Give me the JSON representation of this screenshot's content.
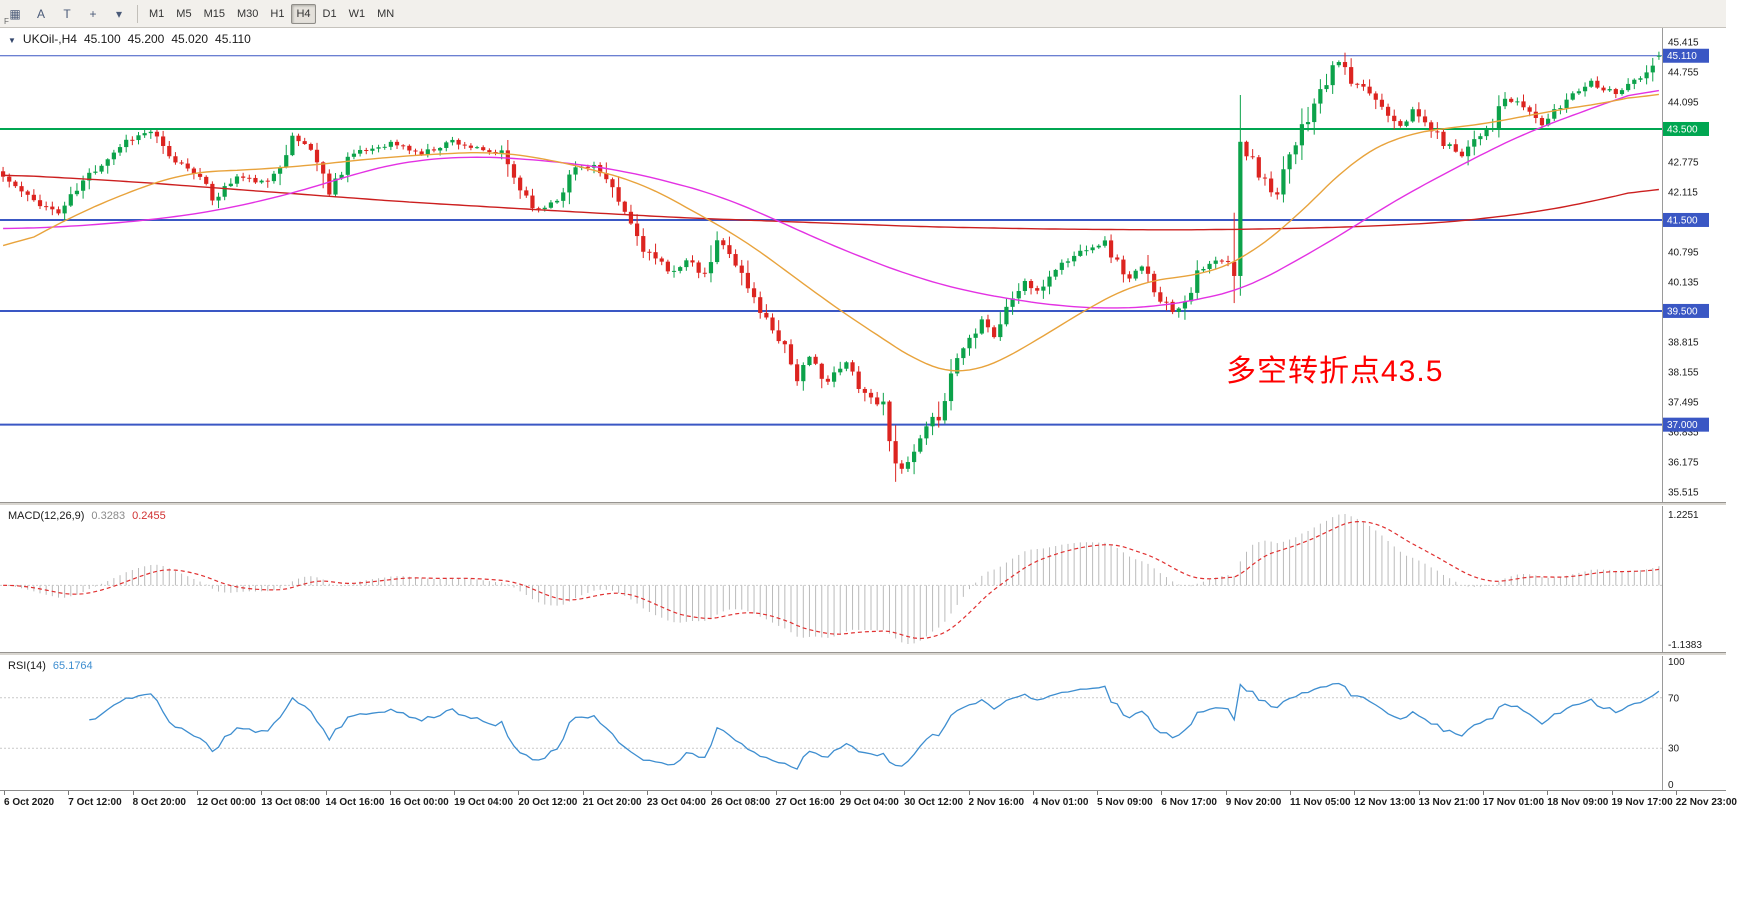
{
  "toolbar": {
    "dock_label": "F",
    "tools": [
      {
        "name": "templates-icon",
        "glyph": "▦"
      },
      {
        "name": "cursor-tool-button",
        "glyph": "A"
      },
      {
        "name": "text-tool-button",
        "glyph": "T"
      },
      {
        "name": "crosshair-tool-button",
        "glyph": "+"
      },
      {
        "name": "tools-dropdown-caret-icon",
        "glyph": "▾"
      }
    ],
    "timeframes": [
      "M1",
      "M5",
      "M15",
      "M30",
      "H1",
      "H4",
      "D1",
      "W1",
      "MN"
    ],
    "active_timeframe": "H4"
  },
  "main_chart": {
    "header": {
      "symbol": "UKOil-,H4",
      "open": "45.100",
      "high": "45.200",
      "low": "45.020",
      "close": "45.110"
    },
    "annotation": {
      "text": "多空转折点43.5",
      "color": "#ff0000"
    },
    "price_range": {
      "top": 45.72,
      "bottom": 35.3
    },
    "price_axis": {
      "labels": [
        "45.415",
        "44.755",
        "44.095",
        "42.775",
        "42.115",
        "40.795",
        "40.135",
        "38.815",
        "38.155",
        "37.495",
        "36.835",
        "36.175",
        "35.515"
      ]
    },
    "horizontal_lines": [
      {
        "name": "current-price-line",
        "price": 45.11,
        "label": "45.110",
        "color": "#3a57c4",
        "style": "solid",
        "width": 1,
        "badge": true
      },
      {
        "name": "green-pivot-line",
        "price": 43.5,
        "label": "43.500",
        "color": "#00a651",
        "style": "solid",
        "width": 2,
        "badge": true
      },
      {
        "name": "blue-support-line-1",
        "price": 41.5,
        "label": "41.500",
        "color": "#3a57c4",
        "style": "solid",
        "width": 2,
        "badge": true
      },
      {
        "name": "blue-support-line-2",
        "price": 39.5,
        "label": "39.500",
        "color": "#3a57c4",
        "style": "solid",
        "width": 2,
        "badge": true
      },
      {
        "name": "blue-support-line-3",
        "price": 37.0,
        "label": "37.000",
        "color": "#3a57c4",
        "style": "solid",
        "width": 2,
        "badge": true
      }
    ]
  },
  "macd": {
    "label": "MACD(12,26,9)",
    "value_main": "0.3283",
    "value_signal": "0.2455",
    "scale_top": "1.2251",
    "scale_bottom": "-1.1383",
    "params": {
      "fast": 12,
      "slow": 26,
      "signal": 9
    },
    "colors": {
      "hist": "#bbbbbb",
      "signal": "#e03030"
    }
  },
  "rsi": {
    "label": "RSI(14)",
    "value": "65.1764",
    "period": 14,
    "levels": [
      100,
      70,
      30,
      0
    ],
    "color": "#3e8ed0"
  },
  "time_axis": {
    "labels": [
      "6 Oct 2020",
      "7 Oct 12:00",
      "8 Oct 20:00",
      "12 Oct 00:00",
      "13 Oct 08:00",
      "14 Oct 16:00",
      "16 Oct 00:00",
      "19 Oct 04:00",
      "20 Oct 12:00",
      "21 Oct 20:00",
      "23 Oct 04:00",
      "26 Oct 08:00",
      "27 Oct 16:00",
      "29 Oct 04:00",
      "30 Oct 12:00",
      "2 Nov 16:00",
      "4 Nov 01:00",
      "5 Nov 09:00",
      "6 Nov 17:00",
      "9 Nov 20:00",
      "11 Nov 05:00",
      "12 Nov 13:00",
      "13 Nov 21:00",
      "17 Nov 01:00",
      "18 Nov 09:00",
      "19 Nov 17:00",
      "22 Nov 23:00"
    ]
  },
  "chart_data": {
    "type": "candlestick",
    "symbol": "UKOil-",
    "timeframe": "H4",
    "candle_count": 270,
    "seed": 11,
    "up_color": "#0ca24a",
    "down_color": "#dc2420",
    "last_candle": {
      "open": 45.1,
      "high": 45.2,
      "low": 45.02,
      "close": 45.11
    },
    "close_keyframes": [
      [
        0,
        42.45
      ],
      [
        4,
        42.0
      ],
      [
        9,
        41.65
      ],
      [
        14,
        42.5
      ],
      [
        20,
        43.25
      ],
      [
        24,
        43.45
      ],
      [
        27,
        42.85
      ],
      [
        31,
        42.6
      ],
      [
        34,
        41.95
      ],
      [
        38,
        42.45
      ],
      [
        43,
        42.3
      ],
      [
        47,
        43.3
      ],
      [
        50,
        43.1
      ],
      [
        53,
        42.1
      ],
      [
        56,
        42.9
      ],
      [
        63,
        43.2
      ],
      [
        68,
        42.95
      ],
      [
        73,
        43.25
      ],
      [
        78,
        43.0
      ],
      [
        81,
        42.95
      ],
      [
        84,
        42.2
      ],
      [
        87,
        41.7
      ],
      [
        90,
        42.0
      ],
      [
        93,
        42.65
      ],
      [
        96,
        42.7
      ],
      [
        99,
        42.1
      ],
      [
        101,
        41.65
      ],
      [
        104,
        40.9
      ],
      [
        108,
        40.35
      ],
      [
        111,
        40.6
      ],
      [
        114,
        40.25
      ],
      [
        116,
        41.0
      ],
      [
        118,
        40.85
      ],
      [
        121,
        40.0
      ],
      [
        124,
        39.3
      ],
      [
        127,
        38.75
      ],
      [
        129,
        38.0
      ],
      [
        131,
        38.45
      ],
      [
        134,
        37.95
      ],
      [
        137,
        38.35
      ],
      [
        140,
        37.7
      ],
      [
        143,
        37.4
      ],
      [
        145,
        36.35
      ],
      [
        146,
        35.95
      ],
      [
        148,
        36.35
      ],
      [
        150,
        36.85
      ],
      [
        152,
        37.25
      ],
      [
        155,
        38.5
      ],
      [
        157,
        38.9
      ],
      [
        159,
        39.35
      ],
      [
        161,
        38.95
      ],
      [
        164,
        39.8
      ],
      [
        166,
        40.15
      ],
      [
        168,
        39.9
      ],
      [
        171,
        40.45
      ],
      [
        174,
        40.7
      ],
      [
        176,
        40.9
      ],
      [
        179,
        41.0
      ],
      [
        181,
        40.55
      ],
      [
        183,
        40.2
      ],
      [
        185,
        40.45
      ],
      [
        188,
        39.8
      ],
      [
        190,
        39.5
      ],
      [
        192,
        39.75
      ],
      [
        194,
        40.3
      ],
      [
        197,
        40.6
      ],
      [
        199,
        40.55
      ],
      [
        200,
        40.4
      ],
      [
        201,
        42.9
      ],
      [
        203,
        42.95
      ],
      [
        204,
        42.55
      ],
      [
        207,
        42.05
      ],
      [
        209,
        42.8
      ],
      [
        212,
        43.8
      ],
      [
        214,
        44.3
      ],
      [
        217,
        45.0
      ],
      [
        219,
        44.5
      ],
      [
        222,
        44.3
      ],
      [
        224,
        44.0
      ],
      [
        227,
        43.6
      ],
      [
        229,
        43.9
      ],
      [
        232,
        43.5
      ],
      [
        234,
        43.2
      ],
      [
        237,
        42.95
      ],
      [
        239,
        43.3
      ],
      [
        242,
        43.6
      ],
      [
        244,
        44.15
      ],
      [
        247,
        44.0
      ],
      [
        250,
        43.6
      ],
      [
        252,
        43.85
      ],
      [
        255,
        44.3
      ],
      [
        258,
        44.55
      ],
      [
        260,
        44.4
      ],
      [
        262,
        44.3
      ],
      [
        264,
        44.5
      ],
      [
        266,
        44.6
      ],
      [
        268,
        44.85
      ],
      [
        269,
        45.11
      ]
    ],
    "ma_lines": [
      {
        "name": "ma-slow-red",
        "color": "#cc1f1f",
        "keyframes": [
          [
            0,
            42.5
          ],
          [
            20,
            42.35
          ],
          [
            40,
            42.15
          ],
          [
            65,
            41.9
          ],
          [
            90,
            41.7
          ],
          [
            110,
            41.55
          ],
          [
            130,
            41.45
          ],
          [
            150,
            41.35
          ],
          [
            170,
            41.3
          ],
          [
            190,
            41.28
          ],
          [
            205,
            41.3
          ],
          [
            220,
            41.35
          ],
          [
            235,
            41.45
          ],
          [
            248,
            41.65
          ],
          [
            258,
            41.9
          ],
          [
            269,
            42.25
          ]
        ]
      },
      {
        "name": "ma-mid-magenta",
        "color": "#e332e3",
        "keyframes": [
          [
            0,
            41.3
          ],
          [
            10,
            41.35
          ],
          [
            20,
            41.45
          ],
          [
            30,
            41.6
          ],
          [
            40,
            41.85
          ],
          [
            50,
            42.2
          ],
          [
            58,
            42.55
          ],
          [
            66,
            42.8
          ],
          [
            76,
            42.9
          ],
          [
            84,
            42.85
          ],
          [
            92,
            42.75
          ],
          [
            100,
            42.6
          ],
          [
            108,
            42.35
          ],
          [
            116,
            42.05
          ],
          [
            124,
            41.6
          ],
          [
            132,
            41.1
          ],
          [
            140,
            40.65
          ],
          [
            148,
            40.25
          ],
          [
            156,
            39.95
          ],
          [
            164,
            39.75
          ],
          [
            172,
            39.6
          ],
          [
            180,
            39.55
          ],
          [
            188,
            39.6
          ],
          [
            196,
            39.8
          ],
          [
            202,
            40.0
          ],
          [
            208,
            40.45
          ],
          [
            214,
            40.9
          ],
          [
            220,
            41.4
          ],
          [
            227,
            42.0
          ],
          [
            234,
            42.5
          ],
          [
            241,
            43.0
          ],
          [
            248,
            43.45
          ],
          [
            255,
            43.8
          ],
          [
            262,
            44.15
          ],
          [
            269,
            44.45
          ]
        ]
      },
      {
        "name": "ma-fast-orange",
        "color": "#e8a33c",
        "keyframes": [
          [
            0,
            40.75
          ],
          [
            10,
            41.5
          ],
          [
            20,
            42.1
          ],
          [
            30,
            42.55
          ],
          [
            40,
            42.6
          ],
          [
            50,
            42.7
          ],
          [
            60,
            42.85
          ],
          [
            70,
            42.95
          ],
          [
            80,
            43.0
          ],
          [
            88,
            42.85
          ],
          [
            96,
            42.6
          ],
          [
            104,
            42.3
          ],
          [
            112,
            41.7
          ],
          [
            120,
            41.1
          ],
          [
            128,
            40.3
          ],
          [
            136,
            39.5
          ],
          [
            144,
            38.8
          ],
          [
            150,
            38.25
          ],
          [
            156,
            38.1
          ],
          [
            160,
            38.25
          ],
          [
            166,
            38.7
          ],
          [
            172,
            39.2
          ],
          [
            178,
            39.7
          ],
          [
            184,
            40.1
          ],
          [
            190,
            40.25
          ],
          [
            196,
            40.3
          ],
          [
            202,
            40.7
          ],
          [
            208,
            41.3
          ],
          [
            214,
            42.1
          ],
          [
            220,
            42.9
          ],
          [
            226,
            43.3
          ],
          [
            232,
            43.5
          ],
          [
            238,
            43.55
          ],
          [
            244,
            43.7
          ],
          [
            250,
            43.85
          ],
          [
            256,
            44.0
          ],
          [
            262,
            44.1
          ],
          [
            269,
            44.35
          ]
        ]
      }
    ]
  }
}
